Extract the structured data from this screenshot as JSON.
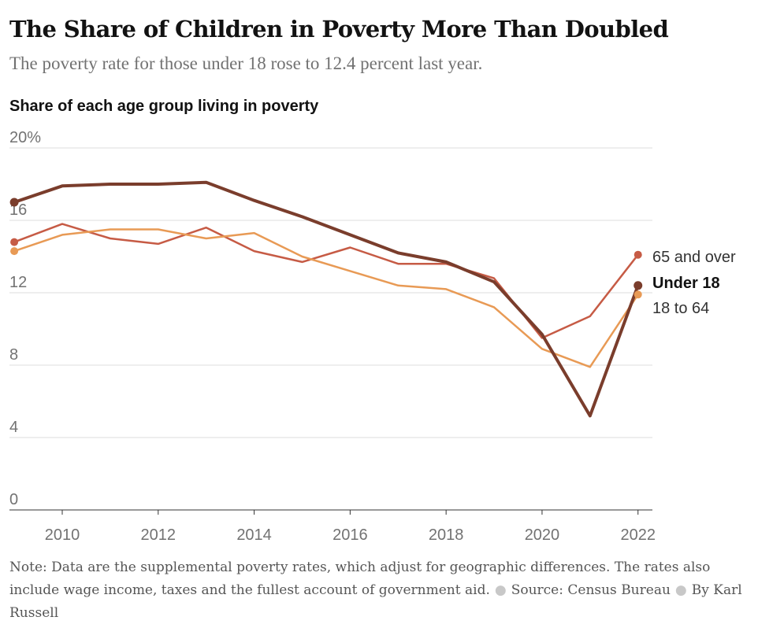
{
  "header": {
    "title": "The Share of Children in Poverty More Than Doubled",
    "subtitle": "The poverty rate for those under 18 rose to 12.4 percent last year."
  },
  "footer": {
    "note": "Note: Data are the supplemental poverty rates, which adjust for geographic differences. The rates also include wage income, taxes and the fullest account of government aid.",
    "source": "Source: Census Bureau",
    "byline": "By Karl Russell"
  },
  "chart_data": {
    "type": "line",
    "title": "The Share of Children in Poverty More Than Doubled",
    "subtitle": "The poverty rate for those under 18 rose to 12.4 percent last year.",
    "ylabel": "Share of each age group living in poverty",
    "xlabel": "",
    "x": [
      2009,
      2010,
      2011,
      2012,
      2013,
      2014,
      2015,
      2016,
      2017,
      2018,
      2019,
      2020,
      2021,
      2022
    ],
    "xlim": [
      2008.9,
      2022.3
    ],
    "ylim": [
      0,
      20
    ],
    "x_ticks": [
      {
        "value": 2010,
        "label": "2010"
      },
      {
        "value": 2012,
        "label": "2012"
      },
      {
        "value": 2014,
        "label": "2014"
      },
      {
        "value": 2016,
        "label": "2016"
      },
      {
        "value": 2018,
        "label": "2018"
      },
      {
        "value": 2020,
        "label": "2020"
      },
      {
        "value": 2022,
        "label": "2022"
      }
    ],
    "y_ticks": [
      {
        "value": 0,
        "label": "0"
      },
      {
        "value": 4,
        "label": "4"
      },
      {
        "value": 8,
        "label": "8"
      },
      {
        "value": 12,
        "label": "12"
      },
      {
        "value": 16,
        "label": "16"
      },
      {
        "value": 20,
        "label": "20%"
      }
    ],
    "grid": true,
    "legend": "direct-labels-right",
    "series": [
      {
        "name": "65 and over",
        "color": "#c65b45",
        "bold": false,
        "values": [
          14.8,
          15.8,
          15.0,
          14.7,
          15.6,
          14.3,
          13.7,
          14.5,
          13.6,
          13.6,
          12.8,
          9.5,
          10.7,
          14.1
        ]
      },
      {
        "name": "18 to 64",
        "color": "#e89a55",
        "bold": false,
        "values": [
          14.3,
          15.2,
          15.5,
          15.5,
          15.0,
          15.3,
          14.0,
          13.2,
          12.4,
          12.2,
          11.2,
          8.9,
          7.9,
          11.9
        ]
      },
      {
        "name": "Under 18",
        "color": "#7a3d2c",
        "bold": true,
        "values": [
          17.0,
          17.9,
          18.0,
          18.0,
          18.1,
          17.1,
          16.2,
          15.2,
          14.2,
          13.7,
          12.6,
          9.7,
          5.2,
          12.4
        ]
      }
    ]
  }
}
